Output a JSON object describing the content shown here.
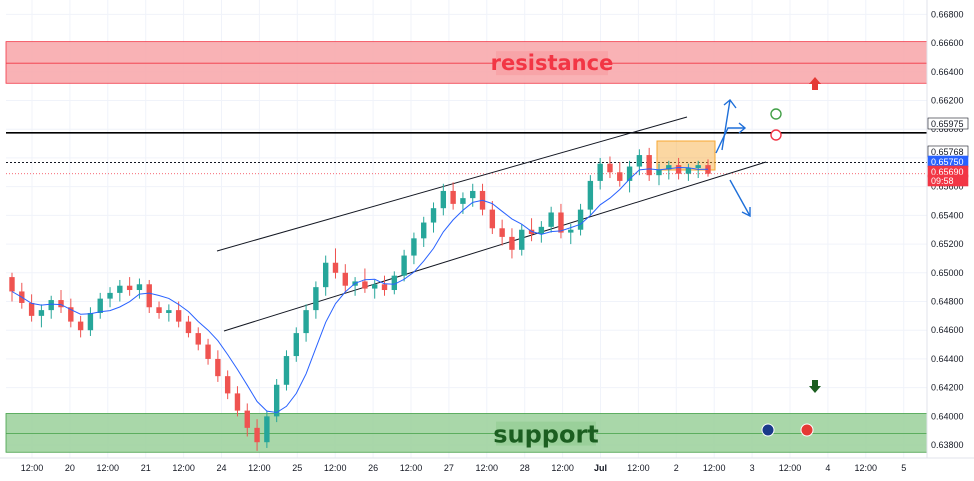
{
  "chart_data": {
    "type": "candlestick",
    "y_ticks": [
      "0.66800",
      "0.66600",
      "0.66400",
      "0.66200",
      "0.66000",
      "0.65800",
      "0.65600",
      "0.65400",
      "0.65200",
      "0.65000",
      "0.64800",
      "0.64600",
      "0.64400",
      "0.64200",
      "0.64000",
      "0.63800"
    ],
    "y_tick_values": [
      0.668,
      0.666,
      0.664,
      0.662,
      0.66,
      0.658,
      0.656,
      0.654,
      0.652,
      0.65,
      0.648,
      0.646,
      0.644,
      0.642,
      0.64,
      0.638
    ],
    "ylim": [
      0.6371,
      0.669
    ],
    "x_ticks": [
      "12:00",
      "20",
      "12:00",
      "21",
      "12:00",
      "24",
      "12:00",
      "25",
      "12:00",
      "26",
      "12:00",
      "27",
      "12:00",
      "28",
      "12:00",
      "Jul",
      "12:00",
      "2",
      "12:00",
      "3",
      "12:00",
      "4",
      "12:00",
      "5"
    ],
    "xlim": [
      0,
      48
    ],
    "candles": [
      [
        0.6497,
        0.65,
        0.648,
        0.6487
      ],
      [
        0.6487,
        0.6493,
        0.6475,
        0.6479
      ],
      [
        0.6479,
        0.6485,
        0.6466,
        0.647
      ],
      [
        0.647,
        0.6478,
        0.6462,
        0.6474
      ],
      [
        0.6474,
        0.6484,
        0.6468,
        0.6481
      ],
      [
        0.6481,
        0.6488,
        0.6472,
        0.6476
      ],
      [
        0.6476,
        0.6482,
        0.6462,
        0.6466
      ],
      [
        0.6466,
        0.647,
        0.6455,
        0.646
      ],
      [
        0.646,
        0.6476,
        0.6456,
        0.6472
      ],
      [
        0.6472,
        0.6486,
        0.6468,
        0.6482
      ],
      [
        0.6482,
        0.649,
        0.6476,
        0.6486
      ],
      [
        0.6486,
        0.6495,
        0.648,
        0.6491
      ],
      [
        0.6491,
        0.6497,
        0.6484,
        0.6488
      ],
      [
        0.6488,
        0.6496,
        0.6482,
        0.6492
      ],
      [
        0.6492,
        0.6495,
        0.6472,
        0.6476
      ],
      [
        0.6476,
        0.648,
        0.6468,
        0.6472
      ],
      [
        0.6472,
        0.6478,
        0.6466,
        0.6474
      ],
      [
        0.6474,
        0.648,
        0.6462,
        0.6466
      ],
      [
        0.6466,
        0.647,
        0.6455,
        0.6458
      ],
      [
        0.6458,
        0.6462,
        0.6446,
        0.645
      ],
      [
        0.645,
        0.6454,
        0.6436,
        0.644
      ],
      [
        0.644,
        0.6446,
        0.6424,
        0.6428
      ],
      [
        0.6428,
        0.6432,
        0.6412,
        0.6416
      ],
      [
        0.6416,
        0.6421,
        0.64,
        0.6404
      ],
      [
        0.6404,
        0.6409,
        0.6386,
        0.6392
      ],
      [
        0.6392,
        0.6398,
        0.6376,
        0.6382
      ],
      [
        0.6382,
        0.6404,
        0.6378,
        0.64
      ],
      [
        0.64,
        0.6426,
        0.6396,
        0.6422
      ],
      [
        0.6422,
        0.6446,
        0.6418,
        0.6442
      ],
      [
        0.6442,
        0.6462,
        0.6438,
        0.6458
      ],
      [
        0.6458,
        0.6478,
        0.6452,
        0.6474
      ],
      [
        0.6474,
        0.6494,
        0.6468,
        0.649
      ],
      [
        0.649,
        0.6512,
        0.6484,
        0.6507
      ],
      [
        0.6507,
        0.6517,
        0.6496,
        0.65
      ],
      [
        0.65,
        0.6506,
        0.6486,
        0.6491
      ],
      [
        0.6491,
        0.6497,
        0.6484,
        0.6494
      ],
      [
        0.6494,
        0.6503,
        0.6486,
        0.6489
      ],
      [
        0.6489,
        0.6495,
        0.6482,
        0.6492
      ],
      [
        0.6492,
        0.6498,
        0.6484,
        0.6488
      ],
      [
        0.6488,
        0.6501,
        0.6485,
        0.6498
      ],
      [
        0.6498,
        0.6516,
        0.6494,
        0.6512
      ],
      [
        0.6512,
        0.6528,
        0.6506,
        0.6524
      ],
      [
        0.6524,
        0.6539,
        0.6518,
        0.6535
      ],
      [
        0.6535,
        0.6549,
        0.6528,
        0.6545
      ],
      [
        0.6545,
        0.6562,
        0.654,
        0.6557
      ],
      [
        0.6557,
        0.6563,
        0.6544,
        0.6548
      ],
      [
        0.6548,
        0.6556,
        0.6541,
        0.6552
      ],
      [
        0.6552,
        0.6562,
        0.6546,
        0.6557
      ],
      [
        0.6557,
        0.6562,
        0.654,
        0.6544
      ],
      [
        0.6544,
        0.655,
        0.6527,
        0.6531
      ],
      [
        0.6531,
        0.6537,
        0.6519,
        0.6525
      ],
      [
        0.6525,
        0.6531,
        0.651,
        0.6516
      ],
      [
        0.6516,
        0.6534,
        0.6512,
        0.653
      ],
      [
        0.653,
        0.6538,
        0.6522,
        0.6527
      ],
      [
        0.6527,
        0.6536,
        0.6521,
        0.6532
      ],
      [
        0.6532,
        0.6546,
        0.6528,
        0.6542
      ],
      [
        0.6542,
        0.6548,
        0.6524,
        0.6528
      ],
      [
        0.6528,
        0.6534,
        0.652,
        0.653
      ],
      [
        0.653,
        0.6548,
        0.6526,
        0.6544
      ],
      [
        0.6544,
        0.6568,
        0.654,
        0.6564
      ],
      [
        0.6564,
        0.658,
        0.6558,
        0.6576
      ],
      [
        0.6576,
        0.6581,
        0.6566,
        0.657
      ],
      [
        0.657,
        0.6577,
        0.656,
        0.6564
      ],
      [
        0.6564,
        0.6578,
        0.6556,
        0.6574
      ],
      [
        0.6574,
        0.6586,
        0.6568,
        0.6582
      ],
      [
        0.6582,
        0.6587,
        0.6564,
        0.6568
      ],
      [
        0.6568,
        0.6576,
        0.6561,
        0.6572
      ],
      [
        0.6572,
        0.6578,
        0.6565,
        0.6575
      ],
      [
        0.6575,
        0.658,
        0.6565,
        0.6569
      ],
      [
        0.6569,
        0.6576,
        0.6564,
        0.6573
      ],
      [
        0.6573,
        0.6578,
        0.6566,
        0.6575
      ],
      [
        0.6575,
        0.6579,
        0.6567,
        0.6569
      ]
    ],
    "moving_average": {
      "color": "#2962ff"
    },
    "price_levels": [
      {
        "label": "0.65975",
        "value": 0.65975,
        "bg": "#ffffff",
        "fg": "#131722",
        "line": "#000000"
      },
      {
        "label": "0.65768",
        "value": 0.65768,
        "bg": "#ffffff",
        "fg": "#131722",
        "line": "#131722"
      },
      {
        "label": "0.65750",
        "value": 0.6575,
        "bg": "#2962ff",
        "fg": "#ffffff"
      },
      {
        "label": "0.65690",
        "value": 0.6569,
        "bg": "#f23645",
        "fg": "#ffffff",
        "line": "#f23645"
      },
      {
        "label": "09:58",
        "value": 0.6558,
        "bg": "#f23645",
        "fg": "#ffffff"
      }
    ],
    "zones": {
      "resistance": {
        "label": "resistance",
        "from": 0.6632,
        "to": 0.6661,
        "mid": 0.6646,
        "fill": "#f8a4a8",
        "text_color": "#f23645"
      },
      "support": {
        "label": "support",
        "from": 0.6375,
        "to": 0.6402,
        "mid": 0.6388,
        "fill": "#9ad09a",
        "text_color": "#1b5e20"
      }
    },
    "colors": {
      "up": "#26a69a",
      "down": "#ef5350",
      "accent_arrow": "#1e6fd9",
      "consolidation": "#f7a731"
    }
  }
}
